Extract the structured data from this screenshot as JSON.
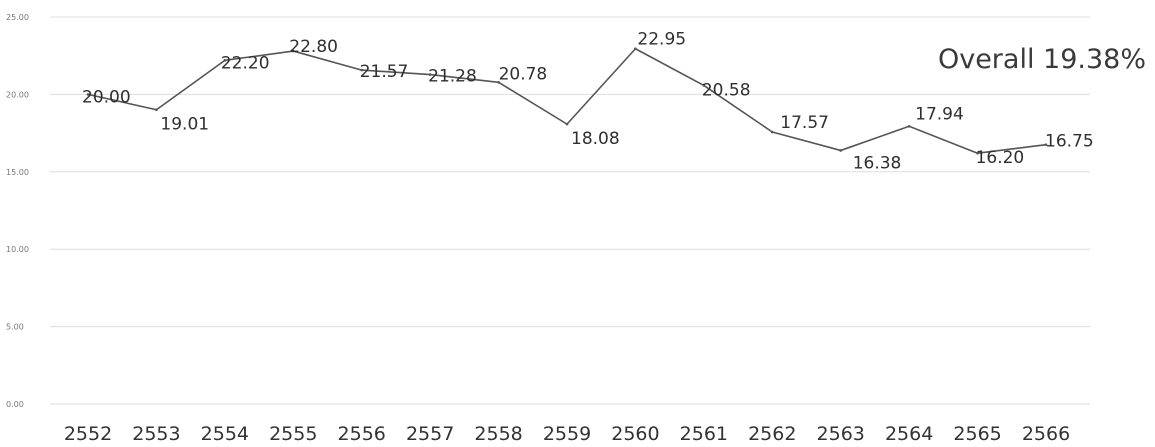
{
  "chart_data": {
    "type": "line",
    "x": [
      "2552",
      "2553",
      "2554",
      "2555",
      "2556",
      "2557",
      "2558",
      "2559",
      "2560",
      "2561",
      "2562",
      "2563",
      "2564",
      "2565",
      "2566"
    ],
    "series": [
      {
        "values": [
          20.0,
          19.01,
          22.2,
          22.8,
          21.57,
          21.28,
          20.78,
          18.08,
          22.95,
          20.58,
          17.57,
          16.38,
          17.94,
          16.2,
          16.75
        ],
        "labels": [
          "20.00",
          "19.01",
          "22.20",
          "22.80",
          "21.57",
          "21.28",
          "20.78",
          "18.08",
          "22.95",
          "20.58",
          "17.57",
          "16.38",
          "17.94",
          "16.20",
          "16.75"
        ],
        "color": "#555555"
      }
    ],
    "ylim": [
      0,
      25
    ],
    "yticks": [
      "0.00",
      "5.00",
      "10.00",
      "15.00",
      "20.00",
      "25.00"
    ],
    "grid": true,
    "annotation": "Overall 19.38%"
  }
}
